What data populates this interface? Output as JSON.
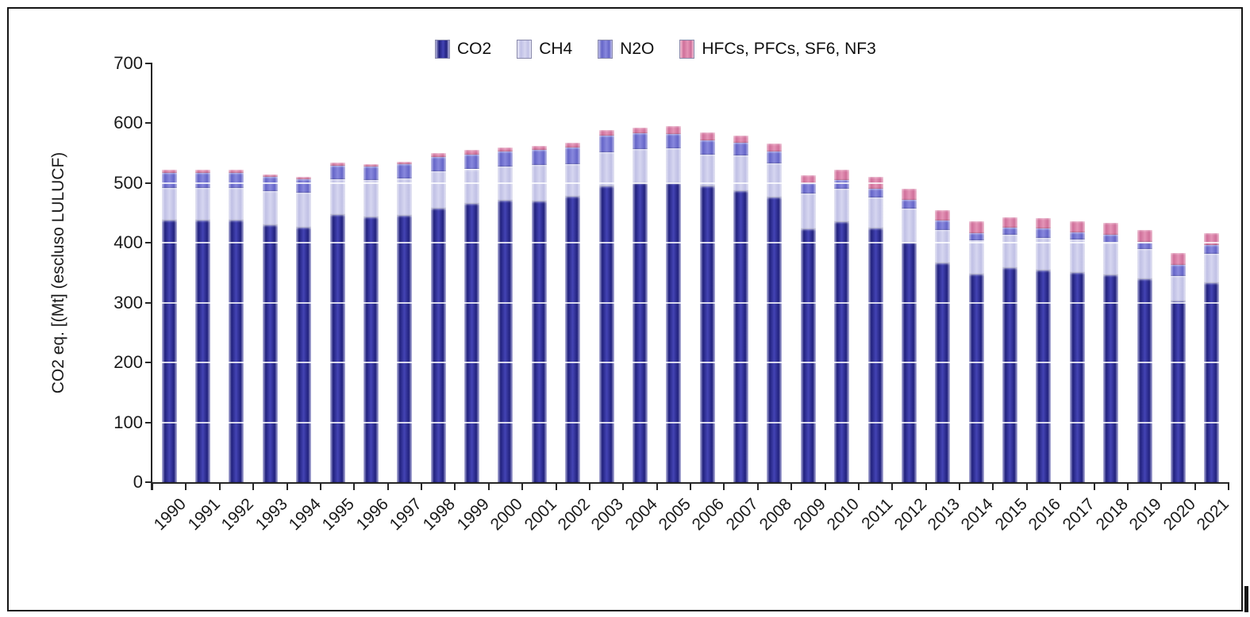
{
  "chart_data": {
    "type": "bar",
    "stacked": true,
    "title": "",
    "xlabel": "",
    "ylabel": "CO2 eq. [(Mt] (escluso LULUCF)",
    "ylim": [
      0,
      700
    ],
    "ytick_interval": 100,
    "ytick_labels": [
      "0",
      "100",
      "200",
      "300",
      "400",
      "500",
      "600",
      "700"
    ],
    "grid": "horizontal-white-over-bars",
    "legend_position": "top-center",
    "categories": [
      "1990",
      "1991",
      "1992",
      "1993",
      "1994",
      "1995",
      "1996",
      "1997",
      "1998",
      "1999",
      "2000",
      "2001",
      "2002",
      "2003",
      "2004",
      "2005",
      "2006",
      "2007",
      "2008",
      "2009",
      "2010",
      "2011",
      "2012",
      "2013",
      "2014",
      "2015",
      "2016",
      "2017",
      "2018",
      "2019",
      "2020",
      "2021"
    ],
    "series": [
      {
        "name": "CO2",
        "color": "#23237f",
        "gradient": [
          "#b8b8e0",
          "#21217e",
          "#4444b4",
          "#21217e",
          "#b8b8e0"
        ],
        "values": [
          437,
          438,
          438,
          429,
          425,
          447,
          443,
          446,
          458,
          465,
          470,
          469,
          477,
          495,
          500,
          500,
          495,
          487,
          476,
          423,
          435,
          424,
          400,
          366,
          347,
          358,
          354,
          350,
          346,
          340,
          302,
          333
        ]
      },
      {
        "name": "CH4",
        "color": "#c6c6e8",
        "gradient": [
          "#eaeaf8",
          "#c0c0e5",
          "#d6d6f0",
          "#c0c0e5",
          "#eaeaf8"
        ],
        "values": [
          55,
          54,
          54,
          58,
          59,
          60,
          62,
          62,
          62,
          58,
          58,
          61,
          55,
          57,
          57,
          58,
          53,
          59,
          57,
          59,
          55,
          52,
          57,
          56,
          57,
          55,
          54,
          56,
          54,
          50,
          43,
          49
        ]
      },
      {
        "name": "N2O",
        "color": "#7272cf",
        "gradient": [
          "#c2c2ec",
          "#6565c8",
          "#8888dd",
          "#6565c8",
          "#c2c2ec"
        ],
        "values": [
          25,
          25,
          25,
          23,
          22,
          22,
          22,
          23,
          24,
          25,
          25,
          25,
          27,
          27,
          26,
          24,
          23,
          22,
          20,
          18,
          15,
          15,
          15,
          15,
          12,
          13,
          16,
          12,
          14,
          12,
          18,
          14
        ]
      },
      {
        "name": "HFCs, PFCs, SF6, NF3",
        "color": "#d8799f",
        "gradient": [
          "#f2c2d6",
          "#cf6f9a",
          "#e494b6",
          "#cf6f9a",
          "#f2c2d6"
        ],
        "values": [
          5,
          6,
          5,
          4,
          5,
          5,
          4,
          5,
          6,
          7,
          7,
          7,
          8,
          9,
          10,
          13,
          13,
          12,
          13,
          13,
          17,
          19,
          18,
          18,
          20,
          17,
          18,
          18,
          19,
          20,
          20,
          20
        ]
      }
    ],
    "totals": [
      522,
      523,
      522,
      514,
      511,
      534,
      531,
      536,
      550,
      555,
      560,
      562,
      567,
      588,
      593,
      595,
      584,
      580,
      566,
      513,
      522,
      510,
      490,
      455,
      436,
      443,
      442,
      436,
      433,
      422,
      383,
      416
    ]
  }
}
